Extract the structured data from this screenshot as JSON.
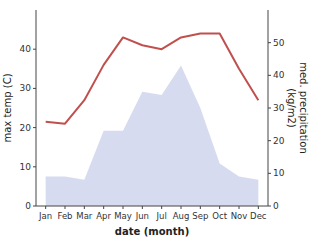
{
  "chart_data": {
    "type": "line",
    "xlabel": "date (month)",
    "ylabel": "max temp (C)",
    "y2label": "med. precipitation\n(kg/m2)",
    "categories": [
      "Jan",
      "Feb",
      "Mar",
      "Apr",
      "May",
      "Jun",
      "Jul",
      "Aug",
      "Sep",
      "Oct",
      "Nov",
      "Dec"
    ],
    "series": [
      {
        "type": "area",
        "axis": "y2",
        "color": "#c5cce8",
        "values": [
          9,
          9,
          8,
          23,
          23,
          35,
          34,
          43,
          30,
          13,
          9,
          8
        ]
      },
      {
        "type": "line",
        "color": "#c0504d",
        "values": [
          21.5,
          21,
          27,
          36,
          43,
          41,
          40,
          43,
          44,
          44,
          35,
          27
        ]
      }
    ],
    "ylim": [
      0,
      50
    ],
    "yticks": [
      0,
      10,
      20,
      30,
      40
    ],
    "y2lim": [
      0,
      60
    ],
    "y2ticks": [
      0,
      10,
      20,
      30,
      40,
      50
    ],
    "grid": false
  }
}
